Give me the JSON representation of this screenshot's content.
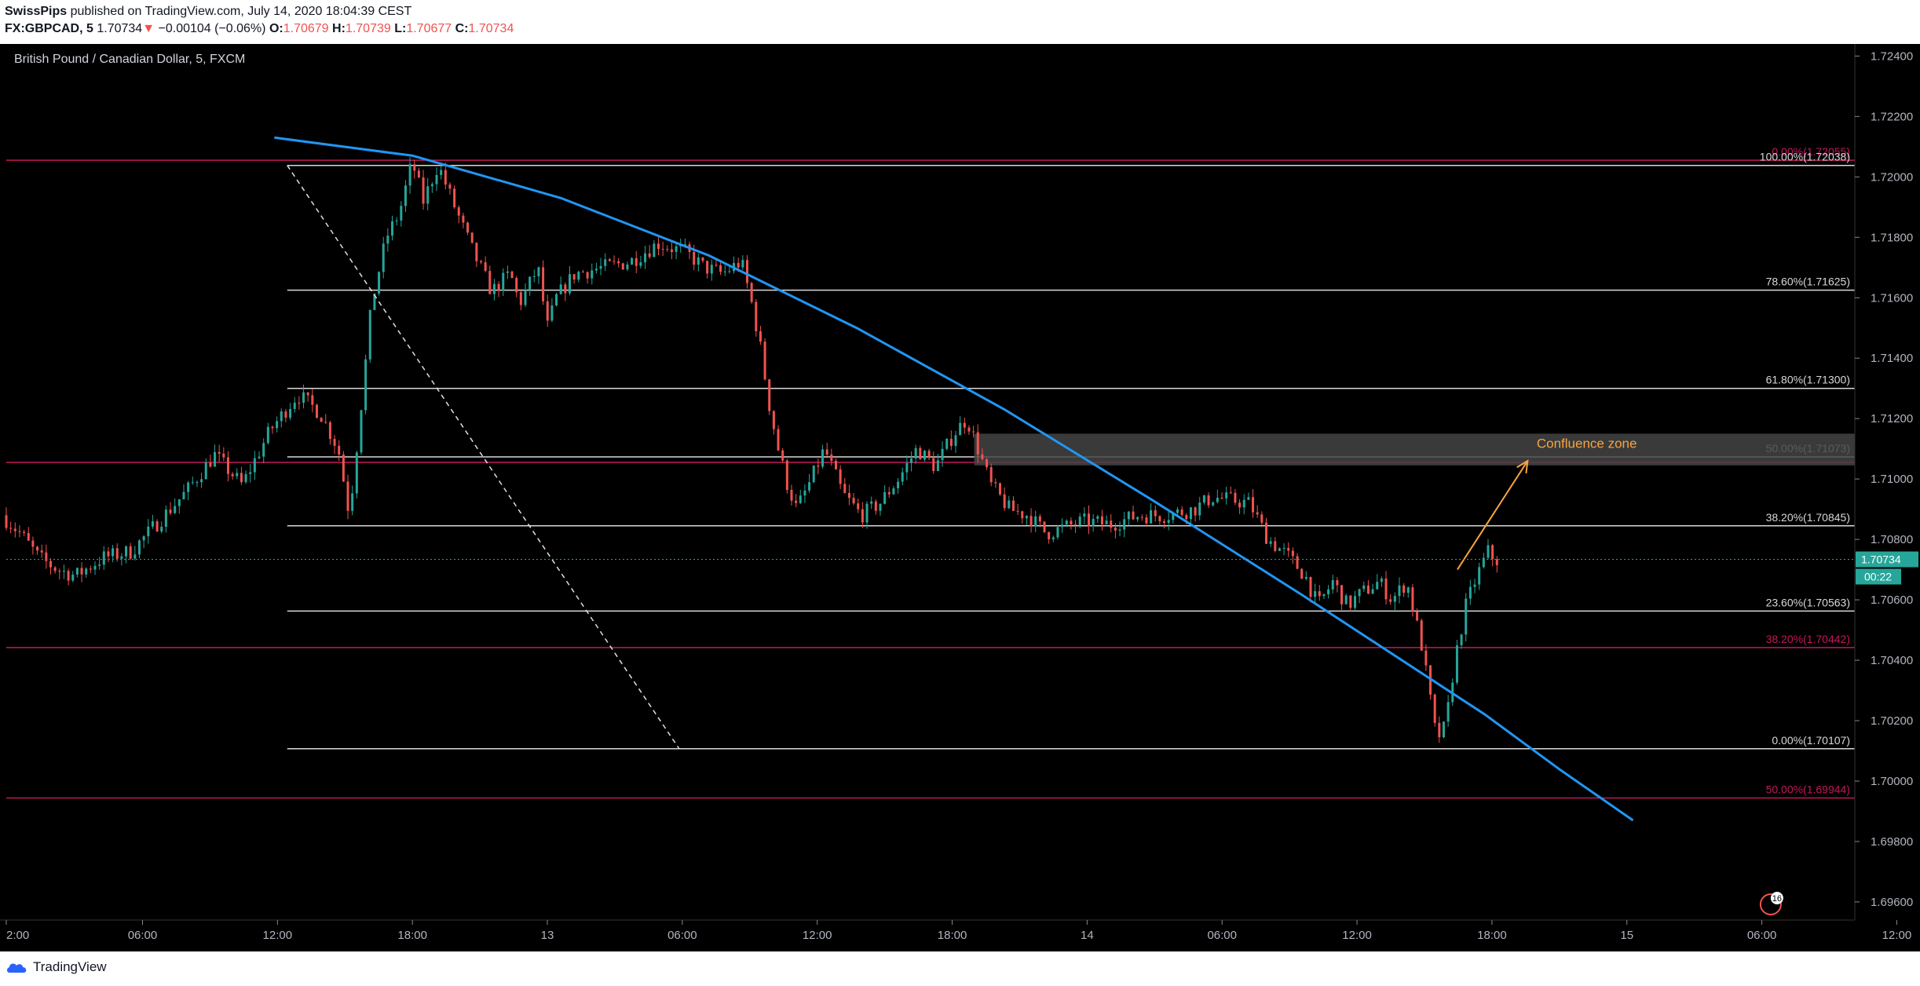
{
  "header": {
    "author": "SwissPips",
    "published_text": " published on TradingView.com, July 14, 2020 18:04:39 CEST",
    "symbol": "FX:GBPCAD, 5",
    "last": "1.70734",
    "arrow": "▼",
    "change": "−0.00104 (−0.06%)",
    "o_label": "O:",
    "o": "1.70679",
    "h_label": "H:",
    "h": "1.70739",
    "l_label": "L:",
    "l": "1.70677",
    "c_label": "C:",
    "c": "1.70734"
  },
  "chart_data": {
    "type": "candlestick",
    "title": "British Pound / Canadian Dollar, 5, FXCM",
    "ylim": [
      1.6954,
      1.7244
    ],
    "y_ticks": [
      "1.72400",
      "1.72200",
      "1.72000",
      "1.71800",
      "1.71600",
      "1.71400",
      "1.71200",
      "1.71000",
      "1.70800",
      "1.70600",
      "1.70400",
      "1.70200",
      "1.70000",
      "1.69800",
      "1.69600"
    ],
    "x_ticks": [
      {
        "label": "2:00",
        "x": 0.0
      },
      {
        "label": "06:00",
        "x": 0.0737
      },
      {
        "label": "12:00",
        "x": 0.1467
      },
      {
        "label": "18:00",
        "x": 0.2197
      },
      {
        "label": "13",
        "x": 0.2927
      },
      {
        "label": "06:00",
        "x": 0.3657
      },
      {
        "label": "12:00",
        "x": 0.4387
      },
      {
        "label": "18:00",
        "x": 0.5117
      },
      {
        "label": "14",
        "x": 0.5847
      },
      {
        "label": "06:00",
        "x": 0.6577
      },
      {
        "label": "12:00",
        "x": 0.7307
      },
      {
        "label": "18:00",
        "x": 0.8037
      },
      {
        "label": "15",
        "x": 0.8767
      },
      {
        "label": "06:00",
        "x": 0.9497
      },
      {
        "label": "12:00",
        "x": 1.0227
      }
    ],
    "price_path": [
      [
        0.0,
        1.7088
      ],
      [
        0.01,
        1.7082
      ],
      [
        0.02,
        1.7074
      ],
      [
        0.03,
        1.707
      ],
      [
        0.04,
        1.7068
      ],
      [
        0.055,
        1.7074
      ],
      [
        0.07,
        1.7076
      ],
      [
        0.085,
        1.7086
      ],
      [
        0.1,
        1.7096
      ],
      [
        0.115,
        1.7108
      ],
      [
        0.13,
        1.7098
      ],
      [
        0.145,
        1.7116
      ],
      [
        0.16,
        1.7128
      ],
      [
        0.172,
        1.7122
      ],
      [
        0.182,
        1.711
      ],
      [
        0.188,
        1.7088
      ],
      [
        0.195,
        1.7128
      ],
      [
        0.2,
        1.7158
      ],
      [
        0.208,
        1.718
      ],
      [
        0.215,
        1.7188
      ],
      [
        0.222,
        1.7205
      ],
      [
        0.228,
        1.7192
      ],
      [
        0.236,
        1.7204
      ],
      [
        0.245,
        1.719
      ],
      [
        0.255,
        1.7175
      ],
      [
        0.265,
        1.7162
      ],
      [
        0.275,
        1.7168
      ],
      [
        0.28,
        1.7158
      ],
      [
        0.29,
        1.717
      ],
      [
        0.295,
        1.715
      ],
      [
        0.3,
        1.716
      ],
      [
        0.31,
        1.7168
      ],
      [
        0.325,
        1.717
      ],
      [
        0.34,
        1.7172
      ],
      [
        0.355,
        1.7178
      ],
      [
        0.37,
        1.7175
      ],
      [
        0.38,
        1.717
      ],
      [
        0.39,
        1.7168
      ],
      [
        0.4,
        1.7172
      ],
      [
        0.405,
        1.716
      ],
      [
        0.41,
        1.7145
      ],
      [
        0.415,
        1.7125
      ],
      [
        0.42,
        1.711
      ],
      [
        0.425,
        1.7098
      ],
      [
        0.43,
        1.709
      ],
      [
        0.438,
        1.71
      ],
      [
        0.445,
        1.711
      ],
      [
        0.455,
        1.7095
      ],
      [
        0.465,
        1.7088
      ],
      [
        0.475,
        1.7092
      ],
      [
        0.485,
        1.71
      ],
      [
        0.495,
        1.711
      ],
      [
        0.505,
        1.7104
      ],
      [
        0.515,
        1.7115
      ],
      [
        0.522,
        1.712
      ],
      [
        0.528,
        1.711
      ],
      [
        0.535,
        1.7098
      ],
      [
        0.545,
        1.709
      ],
      [
        0.555,
        1.7088
      ],
      [
        0.565,
        1.7082
      ],
      [
        0.575,
        1.7084
      ],
      [
        0.585,
        1.7086
      ],
      [
        0.6,
        1.7085
      ],
      [
        0.615,
        1.7088
      ],
      [
        0.63,
        1.7088
      ],
      [
        0.645,
        1.709
      ],
      [
        0.655,
        1.7094
      ],
      [
        0.665,
        1.7093
      ],
      [
        0.675,
        1.7092
      ],
      [
        0.685,
        1.708
      ],
      [
        0.695,
        1.7075
      ],
      [
        0.705,
        1.7068
      ],
      [
        0.712,
        1.7058
      ],
      [
        0.72,
        1.7066
      ],
      [
        0.728,
        1.7058
      ],
      [
        0.735,
        1.7062
      ],
      [
        0.745,
        1.7066
      ],
      [
        0.752,
        1.706
      ],
      [
        0.76,
        1.7066
      ],
      [
        0.768,
        1.7045
      ],
      [
        0.772,
        1.703
      ],
      [
        0.776,
        1.7014
      ],
      [
        0.781,
        1.7018
      ],
      [
        0.786,
        1.704
      ],
      [
        0.792,
        1.7058
      ],
      [
        0.798,
        1.7068
      ],
      [
        0.804,
        1.7076
      ],
      [
        0.808,
        1.7073
      ]
    ],
    "fib_white": [
      {
        "label": "100.00%(1.72038)",
        "value": 1.72038
      },
      {
        "label": "78.60%(1.71625)",
        "value": 1.71625
      },
      {
        "label": "61.80%(1.71300)",
        "value": 1.713
      },
      {
        "label": "50.00%(1.71073)",
        "value": 1.71073
      },
      {
        "label": "38.20%(1.70845)",
        "value": 1.70845
      },
      {
        "label": "23.60%(1.70563)",
        "value": 1.70563
      },
      {
        "label": "0.00%(1.70107)",
        "value": 1.70107
      }
    ],
    "fib_red": [
      {
        "label": "0.00%(1.72055)",
        "value": 1.72055
      },
      {
        "label": "",
        "value": 1.71055
      },
      {
        "label": "38.20%(1.70442)",
        "value": 1.70442
      },
      {
        "label": "50.00%(1.69944)",
        "value": 1.69944
      }
    ],
    "confluence_zone": {
      "label": "Confluence zone",
      "y_top": 1.7115,
      "y_bottom": 1.71045,
      "x_start": 0.5236
    },
    "trend_curve": [
      [
        0.145,
        1.7213
      ],
      [
        0.22,
        1.7207
      ],
      [
        0.3,
        1.7193
      ],
      [
        0.38,
        1.7174
      ],
      [
        0.46,
        1.715
      ],
      [
        0.54,
        1.7123
      ],
      [
        0.62,
        1.7093
      ],
      [
        0.7,
        1.7062
      ],
      [
        0.76,
        1.7038
      ],
      [
        0.8,
        1.7022
      ],
      [
        0.84,
        1.7004
      ],
      [
        0.88,
        1.6987
      ]
    ],
    "dashed_line": [
      [
        0.152,
        1.72038
      ],
      [
        0.364,
        1.70107
      ]
    ],
    "arrow": {
      "from": [
        0.785,
        1.707
      ],
      "to": [
        0.823,
        1.7106
      ]
    },
    "current_price_label": "1.70734",
    "current_price": 1.70734,
    "countdown": "00:22",
    "event_badge": "16",
    "colors": {
      "bg": "#000000",
      "up": "#26a69a",
      "down": "#ef5350",
      "curve": "#2196f3",
      "zone": "#444444",
      "confluence_text": "#f7a440",
      "red_fib": "#c2185b",
      "badge": "#26a69a"
    }
  },
  "footer": {
    "brand": "TradingView"
  }
}
